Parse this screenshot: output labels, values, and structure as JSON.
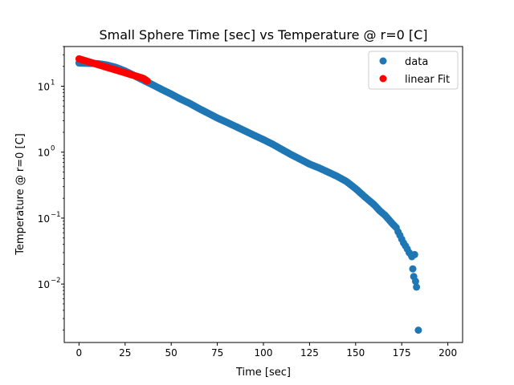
{
  "chart_data": {
    "type": "scatter",
    "title": "Small Sphere Time [sec] vs Temperature @ r=0 [C]",
    "xlabel": "Time [sec]",
    "ylabel": "Temperature @ r=0 [C]",
    "xlim": [
      -8,
      208
    ],
    "ylim": [
      0.0013,
      40
    ],
    "yscale": "log",
    "xticks": [
      0,
      25,
      50,
      75,
      100,
      125,
      150,
      175,
      200
    ],
    "xtick_labels": [
      "0",
      "25",
      "50",
      "75",
      "100",
      "125",
      "150",
      "175",
      "200"
    ],
    "yticks": [
      0.01,
      0.1,
      1,
      10
    ],
    "ytick_labels": [
      "10",
      "10",
      "10",
      "10"
    ],
    "ytick_exponents": [
      "−2",
      "−1",
      "0",
      "1"
    ],
    "grid": false,
    "legend_position": "upper right",
    "series": [
      {
        "name": "data",
        "color": "#1f77b4",
        "x": [
          0,
          2,
          5,
          10,
          15,
          20,
          25,
          30,
          35,
          40,
          45,
          50,
          55,
          60,
          65,
          70,
          75,
          80,
          85,
          90,
          95,
          100,
          105,
          110,
          115,
          120,
          125,
          130,
          135,
          140,
          145,
          150,
          155,
          160,
          163,
          166,
          168,
          170,
          172,
          173,
          174,
          175,
          176,
          177,
          178,
          179,
          180,
          180.5,
          181,
          181.5,
          182,
          182.5,
          183,
          184
        ],
        "y": [
          22.5,
          22.4,
          22.3,
          22.0,
          21.0,
          19.3,
          17.0,
          14.5,
          12.3,
          10.5,
          8.9,
          7.6,
          6.4,
          5.5,
          4.6,
          3.9,
          3.3,
          2.85,
          2.45,
          2.1,
          1.8,
          1.55,
          1.32,
          1.1,
          0.92,
          0.78,
          0.66,
          0.58,
          0.5,
          0.43,
          0.36,
          0.28,
          0.21,
          0.16,
          0.13,
          0.11,
          0.095,
          0.082,
          0.072,
          0.062,
          0.055,
          0.048,
          0.042,
          0.038,
          0.034,
          0.03,
          0.028,
          0.026,
          0.017,
          0.013,
          0.028,
          0.011,
          0.009,
          0.002
        ]
      },
      {
        "name": "linear Fit",
        "color": "#ff0000",
        "x": [
          0,
          2.5,
          5,
          7.5,
          10,
          12.5,
          15,
          17.5,
          20,
          22.5,
          25,
          27.5,
          30,
          32.5,
          35,
          37
        ],
        "y": [
          26.0,
          24.8,
          23.6,
          22.5,
          21.4,
          20.4,
          19.4,
          18.5,
          17.6,
          16.8,
          16.0,
          15.2,
          14.5,
          13.8,
          13.1,
          12.0
        ]
      }
    ]
  }
}
